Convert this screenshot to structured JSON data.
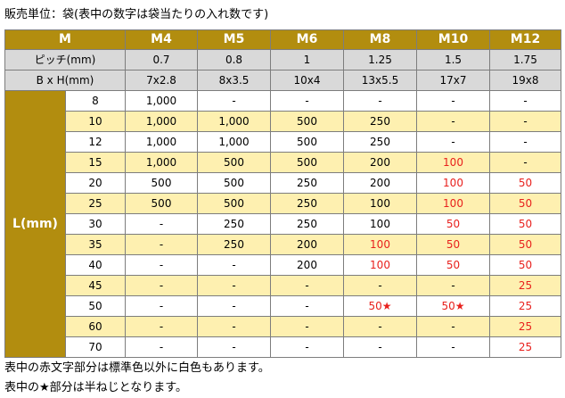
{
  "caption": "販売単位：袋(表中の数字は袋当たりの入れ数です)",
  "header": {
    "m_label": "M",
    "sizes": [
      "M4",
      "M5",
      "M6",
      "M8",
      "M10",
      "M12"
    ]
  },
  "pitch": {
    "label": "ピッチ(mm)",
    "values": [
      "0.7",
      "0.8",
      "1",
      "1.25",
      "1.5",
      "1.75"
    ]
  },
  "bxh": {
    "label": "B x H(mm)",
    "values": [
      "7x2.8",
      "8x3.5",
      "10x4",
      "13x5.5",
      "17x7",
      "19x8"
    ]
  },
  "l_label": "L(mm)",
  "rows": [
    {
      "len": "8",
      "cells": [
        {
          "v": "1,000",
          "red": false
        },
        {
          "v": "-",
          "red": false
        },
        {
          "v": "-",
          "red": false
        },
        {
          "v": "-",
          "red": false
        },
        {
          "v": "-",
          "red": false
        },
        {
          "v": "-",
          "red": false
        }
      ]
    },
    {
      "len": "10",
      "cells": [
        {
          "v": "1,000",
          "red": false
        },
        {
          "v": "1,000",
          "red": false
        },
        {
          "v": "500",
          "red": false
        },
        {
          "v": "250",
          "red": false
        },
        {
          "v": "-",
          "red": false
        },
        {
          "v": "-",
          "red": false
        }
      ]
    },
    {
      "len": "12",
      "cells": [
        {
          "v": "1,000",
          "red": false
        },
        {
          "v": "1,000",
          "red": false
        },
        {
          "v": "500",
          "red": false
        },
        {
          "v": "250",
          "red": false
        },
        {
          "v": "-",
          "red": false
        },
        {
          "v": "-",
          "red": false
        }
      ]
    },
    {
      "len": "15",
      "cells": [
        {
          "v": "1,000",
          "red": false
        },
        {
          "v": "500",
          "red": false
        },
        {
          "v": "500",
          "red": false
        },
        {
          "v": "200",
          "red": false
        },
        {
          "v": "100",
          "red": true
        },
        {
          "v": "-",
          "red": false
        }
      ]
    },
    {
      "len": "20",
      "cells": [
        {
          "v": "500",
          "red": false
        },
        {
          "v": "500",
          "red": false
        },
        {
          "v": "250",
          "red": false
        },
        {
          "v": "200",
          "red": false
        },
        {
          "v": "100",
          "red": true
        },
        {
          "v": "50",
          "red": true
        }
      ]
    },
    {
      "len": "25",
      "cells": [
        {
          "v": "500",
          "red": false
        },
        {
          "v": "500",
          "red": false
        },
        {
          "v": "250",
          "red": false
        },
        {
          "v": "100",
          "red": false
        },
        {
          "v": "100",
          "red": true
        },
        {
          "v": "50",
          "red": true
        }
      ]
    },
    {
      "len": "30",
      "cells": [
        {
          "v": "-",
          "red": false
        },
        {
          "v": "250",
          "red": false
        },
        {
          "v": "250",
          "red": false
        },
        {
          "v": "100",
          "red": false
        },
        {
          "v": "50",
          "red": true
        },
        {
          "v": "50",
          "red": true
        }
      ]
    },
    {
      "len": "35",
      "cells": [
        {
          "v": "-",
          "red": false
        },
        {
          "v": "250",
          "red": false
        },
        {
          "v": "200",
          "red": false
        },
        {
          "v": "100",
          "red": true
        },
        {
          "v": "50",
          "red": true
        },
        {
          "v": "50",
          "red": true
        }
      ]
    },
    {
      "len": "40",
      "cells": [
        {
          "v": "-",
          "red": false
        },
        {
          "v": "-",
          "red": false
        },
        {
          "v": "200",
          "red": false
        },
        {
          "v": "100",
          "red": true
        },
        {
          "v": "50",
          "red": true
        },
        {
          "v": "50",
          "red": true
        }
      ]
    },
    {
      "len": "45",
      "cells": [
        {
          "v": "-",
          "red": false
        },
        {
          "v": "-",
          "red": false
        },
        {
          "v": "-",
          "red": false
        },
        {
          "v": "-",
          "red": false
        },
        {
          "v": "-",
          "red": false
        },
        {
          "v": "25",
          "red": true
        }
      ]
    },
    {
      "len": "50",
      "cells": [
        {
          "v": "-",
          "red": false
        },
        {
          "v": "-",
          "red": false
        },
        {
          "v": "-",
          "red": false
        },
        {
          "v": "50★",
          "red": true
        },
        {
          "v": "50★",
          "red": true
        },
        {
          "v": "25",
          "red": true
        }
      ]
    },
    {
      "len": "60",
      "cells": [
        {
          "v": "-",
          "red": false
        },
        {
          "v": "-",
          "red": false
        },
        {
          "v": "-",
          "red": false
        },
        {
          "v": "-",
          "red": false
        },
        {
          "v": "-",
          "red": false
        },
        {
          "v": "25",
          "red": true
        }
      ]
    },
    {
      "len": "70",
      "cells": [
        {
          "v": "-",
          "red": false
        },
        {
          "v": "-",
          "red": false
        },
        {
          "v": "-",
          "red": false
        },
        {
          "v": "-",
          "red": false
        },
        {
          "v": "-",
          "red": false
        },
        {
          "v": "25",
          "red": true
        }
      ]
    }
  ],
  "notes": [
    "表中の赤文字部分は標準色以外に白色もあります。",
    "表中の★部分は半ねじとなります。"
  ],
  "colors": {
    "header_bg": "#b28d0f",
    "sub_bg": "#d9d9d9",
    "stripe_bg": "#fef0b0",
    "red_text": "#e8211d"
  }
}
